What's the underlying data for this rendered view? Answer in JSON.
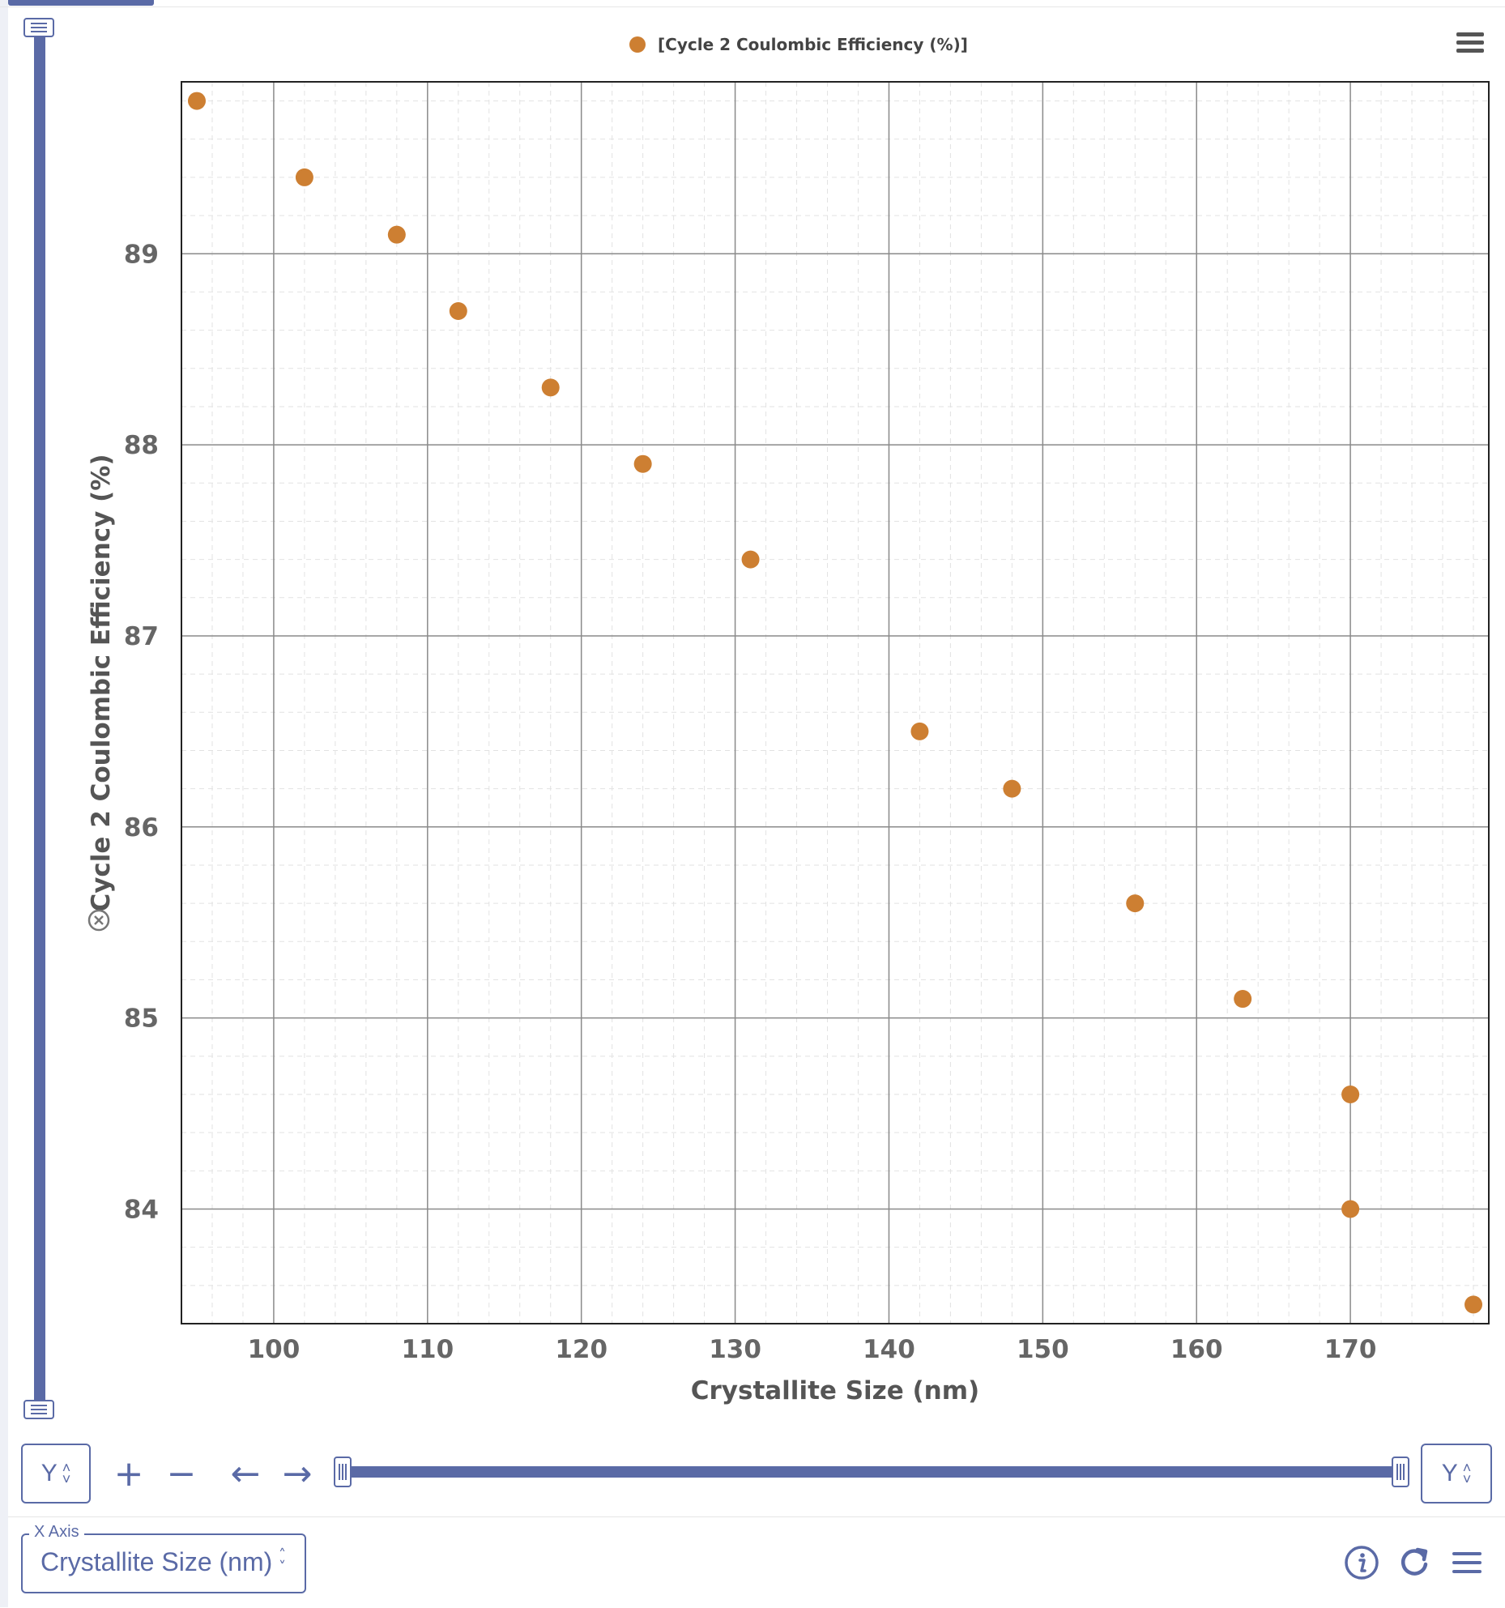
{
  "chart_data": {
    "type": "scatter",
    "legend": [
      "[Cycle 2 Coulombic Efficiency (%)]"
    ],
    "legend_position": "top-center",
    "xlabel": "Crystallite Size (nm)",
    "ylabel": "Cycle 2 Coulombic Efficiency (%)",
    "xlim": [
      94,
      179
    ],
    "ylim": [
      83.4,
      89.9
    ],
    "xticks": [
      100,
      110,
      120,
      130,
      140,
      150,
      160,
      170
    ],
    "yticks": [
      84,
      85,
      86,
      87,
      88,
      89
    ],
    "grid": true,
    "marker_color": "#cd7f32",
    "series": [
      {
        "name": "[Cycle 2 Coulombic Efficiency (%)]",
        "points": [
          {
            "x": 95,
            "y": 89.8
          },
          {
            "x": 102,
            "y": 89.4
          },
          {
            "x": 108,
            "y": 89.1
          },
          {
            "x": 112,
            "y": 88.7
          },
          {
            "x": 118,
            "y": 88.3
          },
          {
            "x": 124,
            "y": 87.9
          },
          {
            "x": 131,
            "y": 87.4
          },
          {
            "x": 142,
            "y": 86.5
          },
          {
            "x": 148,
            "y": 86.2
          },
          {
            "x": 156,
            "y": 85.6
          },
          {
            "x": 163,
            "y": 85.1
          },
          {
            "x": 170,
            "y": 84.6
          },
          {
            "x": 170,
            "y": 84.0
          },
          {
            "x": 178,
            "y": 83.5
          }
        ]
      }
    ]
  },
  "controls": {
    "y_select_left": "Y",
    "y_select_right": "Y",
    "zoom_in": "+",
    "zoom_out": "−",
    "pan_left": "←",
    "pan_right": "→"
  },
  "x_axis_select": {
    "legend": "X Axis",
    "value": "Crystallite Size (nm)"
  },
  "colors": {
    "accent": "#5a6aa6",
    "marker": "#cd7f32"
  },
  "icons": [
    "menu-icon",
    "info-icon",
    "refresh-icon",
    "hamburger-icon",
    "remove-axis-icon"
  ]
}
